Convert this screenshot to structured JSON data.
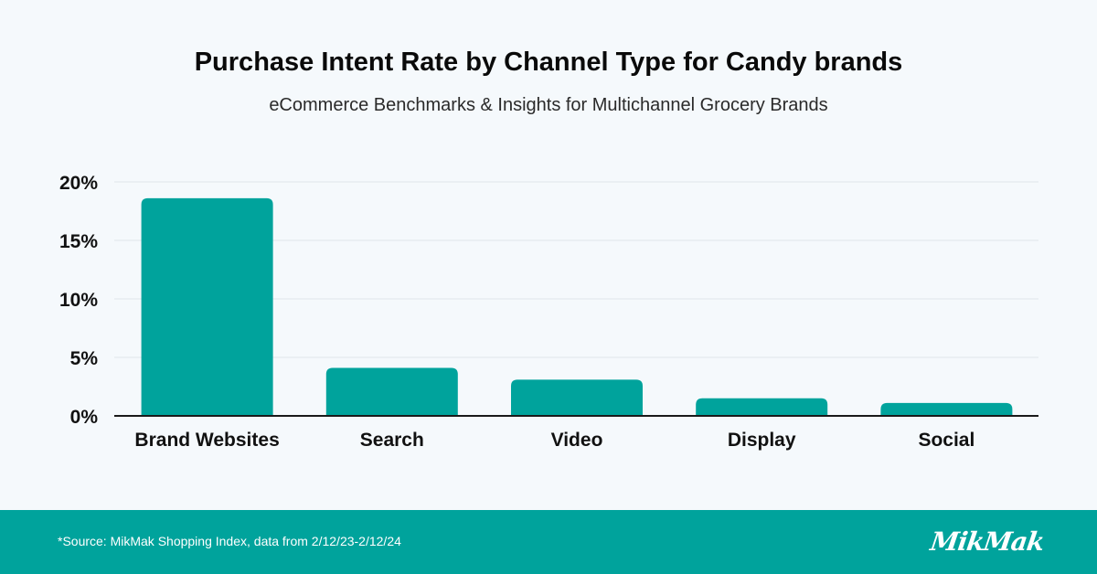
{
  "header": {
    "title": "Purchase Intent Rate by Channel Type for Candy brands",
    "subtitle": "eCommerce Benchmarks & Insights for Multichannel Grocery Brands"
  },
  "chart_data": {
    "type": "bar",
    "title": "Purchase Intent Rate by Channel Type for Candy brands",
    "subtitle": "eCommerce Benchmarks & Insights for Multichannel Grocery Brands",
    "categories": [
      "Brand Websites",
      "Search",
      "Video",
      "Display",
      "Social"
    ],
    "values": [
      18.6,
      4.1,
      3.1,
      1.5,
      1.1
    ],
    "xlabel": "",
    "ylabel": "",
    "ylim": [
      0,
      20
    ],
    "yticks": [
      0,
      5,
      10,
      15,
      20
    ],
    "ytick_labels": [
      "0%",
      "5%",
      "10%",
      "15%",
      "20%"
    ],
    "grid": true,
    "legend": "none",
    "bar_color": "#00a39c",
    "grid_color": "#dfe5ea",
    "axis_color": "#1a1a1a"
  },
  "footer": {
    "source": "*Source: MikMak Shopping Index, data from 2/12/23-2/12/24",
    "logo": "MikMak",
    "background_color": "#00a39c"
  }
}
